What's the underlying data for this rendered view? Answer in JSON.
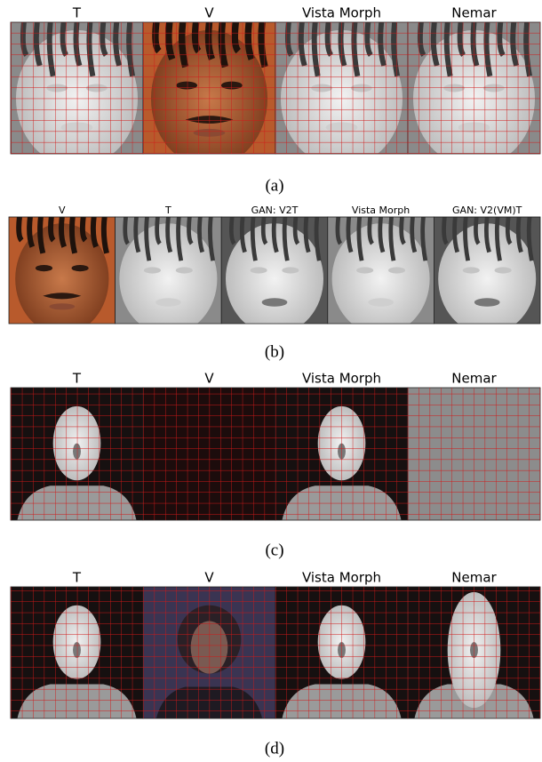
{
  "panels": [
    {
      "titles": [
        "T",
        "V",
        "Vista Morph",
        "Nemar"
      ],
      "caption": "(a)"
    },
    {
      "titles": [
        "V",
        "T",
        "GAN: V2T",
        "Vista Morph",
        "GAN: V2(VM)T"
      ],
      "caption": "(b)"
    },
    {
      "titles": [
        "T",
        "V",
        "Vista Morph",
        "Nemar"
      ],
      "caption": "(c)"
    },
    {
      "titles": [
        "T",
        "V",
        "Vista Morph",
        "Nemar"
      ],
      "caption": "(d)"
    }
  ]
}
